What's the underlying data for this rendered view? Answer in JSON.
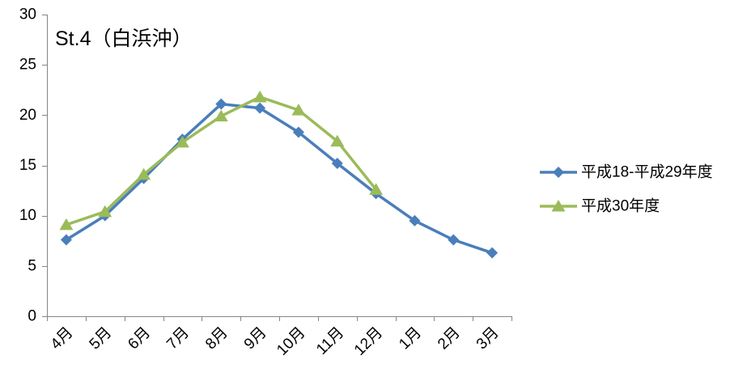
{
  "chart_data": {
    "type": "line",
    "title": "St.4（白浜沖）",
    "categories": [
      "4月",
      "5月",
      "6月",
      "7月",
      "8月",
      "9月",
      "10月",
      "11月",
      "12月",
      "1月",
      "2月",
      "3月"
    ],
    "ylim": [
      0,
      30
    ],
    "yticks": [
      0,
      5,
      10,
      15,
      20,
      25,
      30
    ],
    "grid": false,
    "legend": "right",
    "series": [
      {
        "name": "平成18-平成29年度",
        "color": "#4A7EBB",
        "marker": "diamond",
        "values": [
          7.6,
          10.0,
          13.7,
          17.6,
          21.1,
          20.7,
          18.3,
          15.2,
          12.2,
          9.5,
          7.6,
          6.3
        ]
      },
      {
        "name": "平成30年度",
        "color": "#9BBB59",
        "marker": "triangle",
        "values": [
          9.1,
          10.4,
          14.1,
          17.3,
          19.9,
          21.8,
          20.5,
          17.4,
          12.6,
          null,
          null,
          null
        ]
      }
    ]
  }
}
